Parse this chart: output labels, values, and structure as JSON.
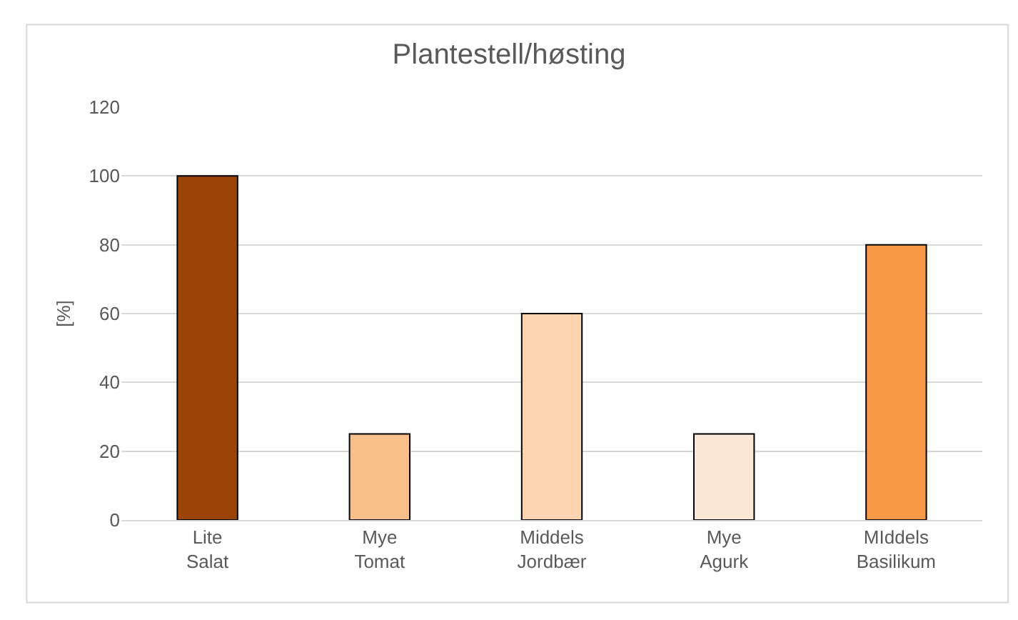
{
  "chart_data": {
    "type": "bar",
    "title": "Plantestell/høsting",
    "ylabel": "[%]",
    "categories": [
      "Lite\nSalat",
      "Mye\nTomat",
      "Middels\nJordbær",
      "Mye\nAgurk",
      "MIddels\nBasilikum"
    ],
    "values": [
      100,
      25,
      60,
      25,
      80
    ],
    "colors": [
      "#9a4505",
      "#f8bf8a",
      "#fcd5b0",
      "#fde8d6",
      "#f79a48"
    ],
    "ylim": [
      0,
      120
    ],
    "yticks": [
      0,
      20,
      40,
      60,
      80,
      100,
      120
    ],
    "grid": "y",
    "legend": false
  }
}
